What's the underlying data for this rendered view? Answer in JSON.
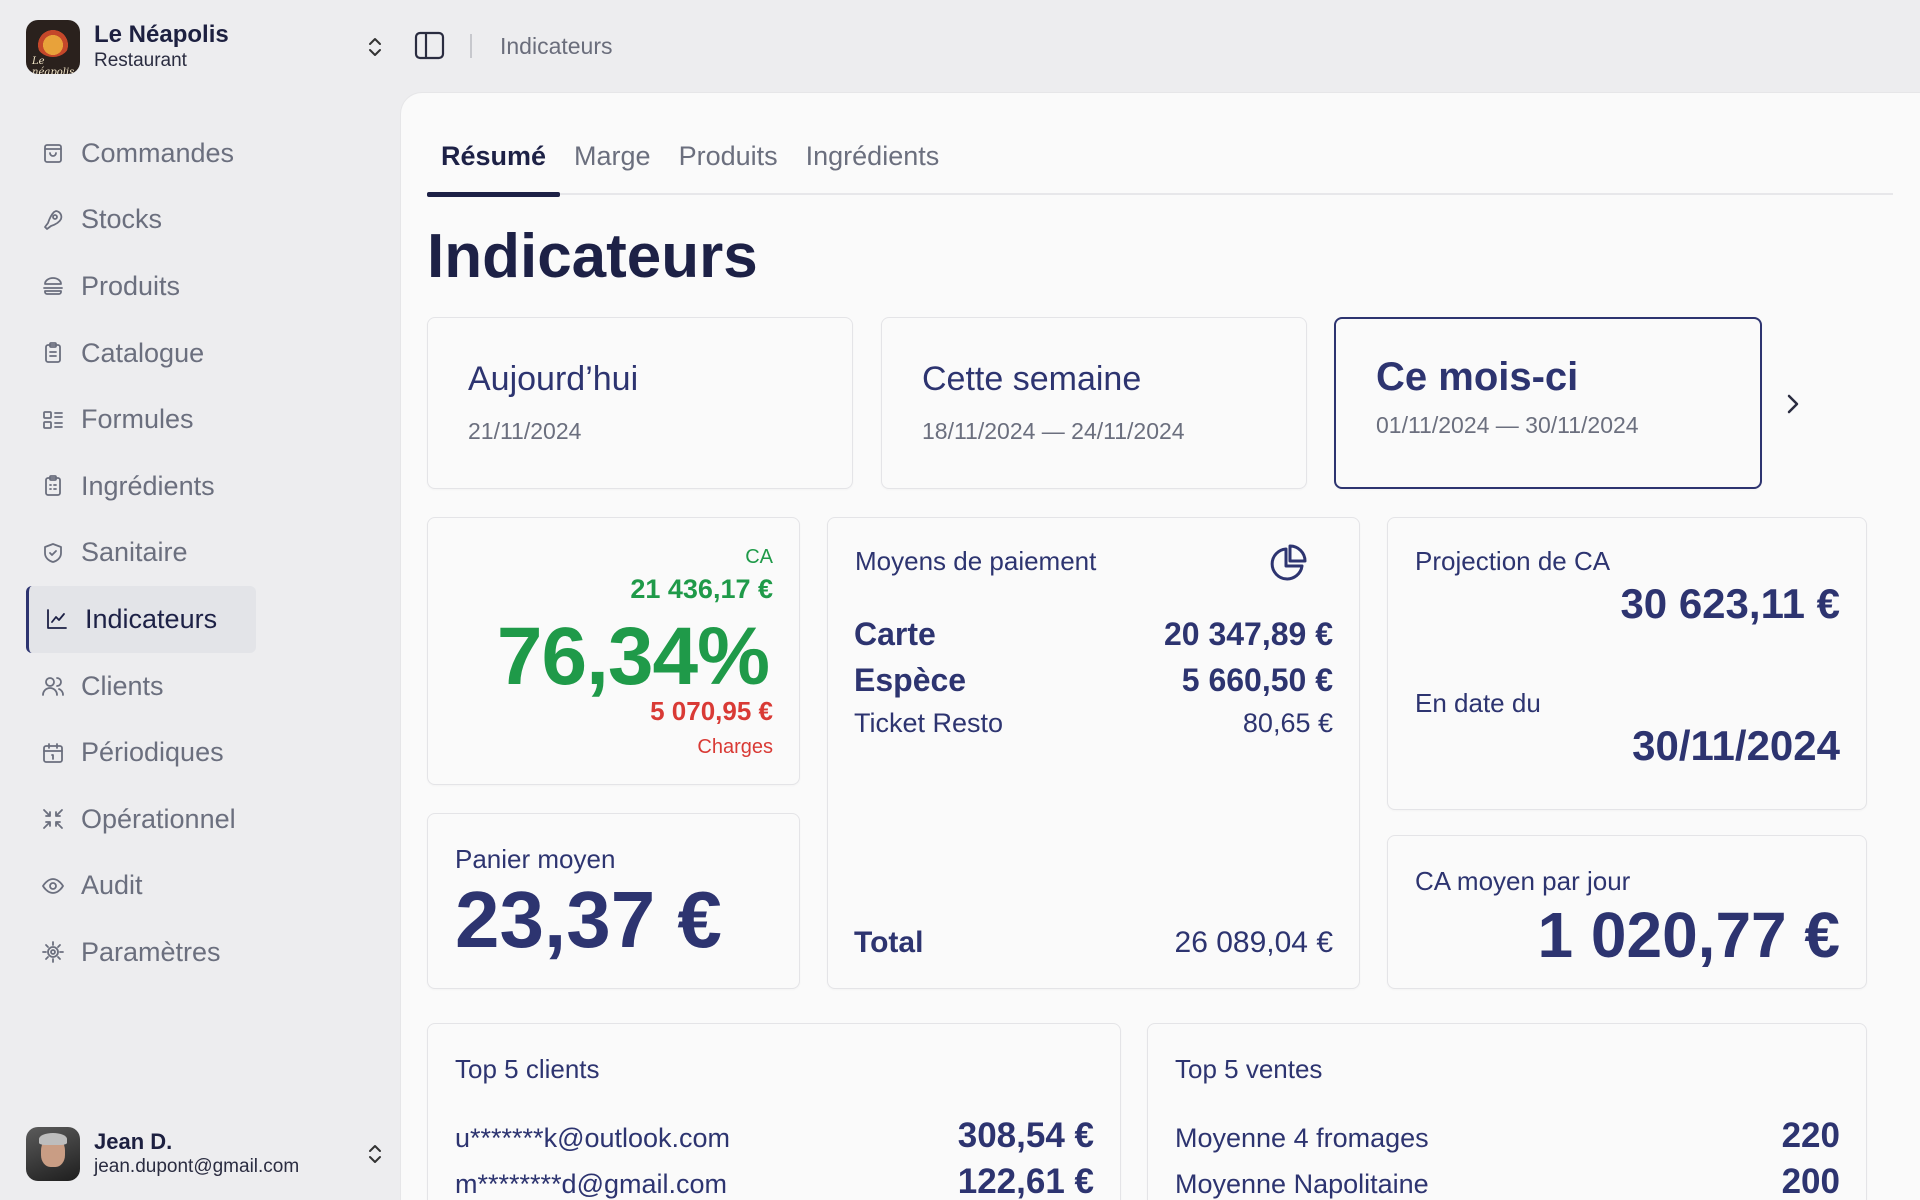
{
  "brand": {
    "name": "Le Néapolis",
    "subtitle": "Restaurant",
    "logo_text": "Le néapolis"
  },
  "nav": [
    {
      "label": "Commandes",
      "icon": "shopping-bag-icon"
    },
    {
      "label": "Stocks",
      "icon": "meat-icon"
    },
    {
      "label": "Produits",
      "icon": "burger-icon"
    },
    {
      "label": "Catalogue",
      "icon": "clipboard-list-icon"
    },
    {
      "label": "Formules",
      "icon": "layout-list-icon"
    },
    {
      "label": "Ingrédients",
      "icon": "clipboard-check-icon"
    },
    {
      "label": "Sanitaire",
      "icon": "shield-check-icon"
    },
    {
      "label": "Indicateurs",
      "icon": "line-chart-icon",
      "active": true
    },
    {
      "label": "Clients",
      "icon": "users-icon"
    },
    {
      "label": "Périodiques",
      "icon": "calendar-icon"
    },
    {
      "label": "Opérationnel",
      "icon": "shrink-icon"
    },
    {
      "label": "Audit",
      "icon": "eye-icon"
    },
    {
      "label": "Paramètres",
      "icon": "cog-icon"
    }
  ],
  "user": {
    "name": "Jean D.",
    "email": "jean.dupont@gmail.com"
  },
  "header": {
    "breadcrumb": "Indicateurs"
  },
  "tabs": [
    "Résumé",
    "Marge",
    "Produits",
    "Ingrédients"
  ],
  "page_title": "Indicateurs",
  "periods": [
    {
      "title": "Aujourd’hui",
      "range": "21/11/2024"
    },
    {
      "title": "Cette semaine",
      "range": "18/11/2024 — 24/11/2024"
    },
    {
      "title": "Ce mois-ci",
      "range": "01/11/2024 — 30/11/2024",
      "selected": true
    }
  ],
  "margin_card": {
    "ca_label": "CA",
    "ca_value": "21 436,17 €",
    "margin_pct": "76,34%",
    "charges_value": "5 070,95 €",
    "charges_label": "Charges"
  },
  "basket": {
    "label": "Panier moyen",
    "value": "23,37 €"
  },
  "payments": {
    "title": "Moyens de paiement",
    "rows": [
      {
        "label": "Carte",
        "value": "20 347,89 €"
      },
      {
        "label": "Espèce",
        "value": "5 660,50 €"
      },
      {
        "label": "Ticket Resto",
        "value": "80,65 €"
      }
    ],
    "total_label": "Total",
    "total_value": "26 089,04 €"
  },
  "projection": {
    "label": "Projection de CA",
    "value": "30 623,11 €",
    "date_label": "En date du",
    "date_value": "30/11/2024"
  },
  "daily": {
    "label": "CA moyen par jour",
    "value": "1 020,77 €"
  },
  "top_clients": {
    "title": "Top 5 clients",
    "rows": [
      {
        "name": "u*******k@outlook.com",
        "value": "308,54 €"
      },
      {
        "name": "m********d@gmail.com",
        "value": "122,61 €"
      }
    ]
  },
  "top_sales": {
    "title": "Top 5 ventes",
    "rows": [
      {
        "name": "Moyenne 4 fromages",
        "value": "220"
      },
      {
        "name": "Moyenne Napolitaine",
        "value": "200"
      }
    ]
  },
  "colors": {
    "navy": "#2d3470",
    "green": "#1f9a49",
    "red": "#d93a35"
  }
}
